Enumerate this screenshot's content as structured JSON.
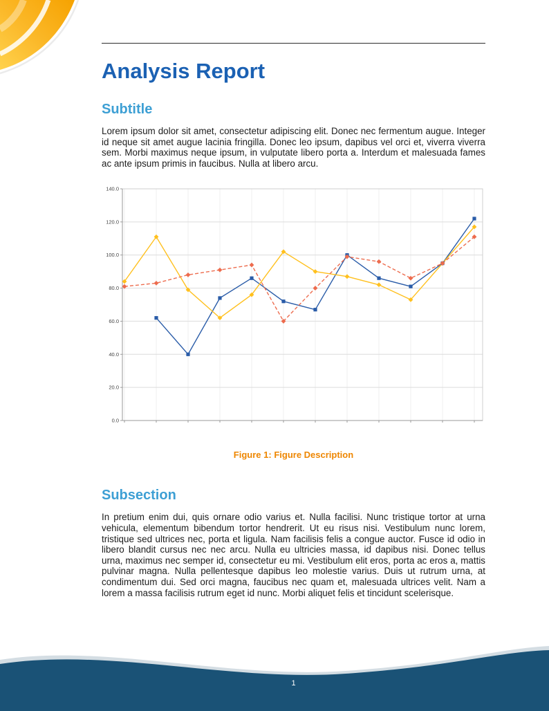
{
  "page": {
    "title": "Analysis Report",
    "section1": {
      "heading": "Subtitle",
      "body": "Lorem ipsum dolor sit amet, consectetur adipiscing elit. Donec nec fermentum augue. Integer id neque sit amet augue lacinia fringilla. Donec leo ipsum, dapibus vel orci et, viverra viverra sem. Morbi maximus neque ipsum, in vulputate libero porta a. Interdum et malesuada fames ac ante ipsum primis in faucibus. Nulla at libero arcu."
    },
    "figure": {
      "caption_label": "Figure 1:",
      "caption_text": "Figure Description"
    },
    "section2": {
      "heading": "Subsection",
      "body": "In pretium enim dui, quis ornare odio varius et. Nulla facilisi. Nunc tristique tortor at urna vehicula, elementum bibendum tortor hendrerit. Ut eu risus nisi. Vestibulum nunc lorem, tristique sed ultrices nec, porta et ligula. Nam facilisis felis a congue auctor. Fusce id odio in libero blandit cursus nec nec arcu. Nulla eu ultricies massa, id dapibus nisi. Donec tellus urna, maximus nec semper id, consectetur eu mi. Vestibulum elit eros, porta ac eros a, mattis pulvinar magna. Nulla pellentesque dapibus leo molestie varius. Duis ut rutrum urna, at condimentum dui. Sed orci magna, faucibus nec quam et, malesuada ultrices velit. Nam a lorem a massa facilisis rutrum eget id nunc. Morbi aliquet felis et tincidunt scelerisque."
    },
    "footer": {
      "page_number": "1"
    }
  },
  "colors": {
    "accent_blue": "#1b61b3",
    "heading_blue": "#3d9fd4",
    "caption_orange": "#ee8600",
    "footer_navy": "#1a5276",
    "corner_orange": "#f6a200",
    "corner_yellow": "#ffd24d"
  },
  "chart_data": {
    "type": "line",
    "title": "",
    "xlabel": "",
    "ylabel": "",
    "x": [
      1,
      2,
      3,
      4,
      5,
      6,
      7,
      8,
      9,
      10,
      11,
      12
    ],
    "ylim": [
      0,
      140
    ],
    "ytick_step": 20,
    "ytick_labels": [
      "0.0",
      "20.0",
      "40.0",
      "60.0",
      "80.0",
      "100.0",
      "120.0",
      "140.0"
    ],
    "grid": true,
    "legend": "none",
    "series": [
      {
        "name": "series-blue",
        "color": "#2a5ca8",
        "style": "solid",
        "marker": "square",
        "values": [
          null,
          62,
          40,
          74,
          86,
          72,
          67,
          100,
          86,
          81,
          95,
          122
        ]
      },
      {
        "name": "series-yellow",
        "color": "#ffc01e",
        "style": "solid",
        "marker": "diamond",
        "values": [
          84,
          111,
          79,
          62,
          76,
          102,
          90,
          87,
          82,
          73,
          95,
          117
        ]
      },
      {
        "name": "series-orange-dashed",
        "color": "#ed6c4e",
        "style": "dashed",
        "marker": "diamond",
        "values": [
          81,
          83,
          88,
          91,
          94,
          60,
          80,
          99,
          96,
          86,
          95,
          111
        ]
      }
    ]
  }
}
